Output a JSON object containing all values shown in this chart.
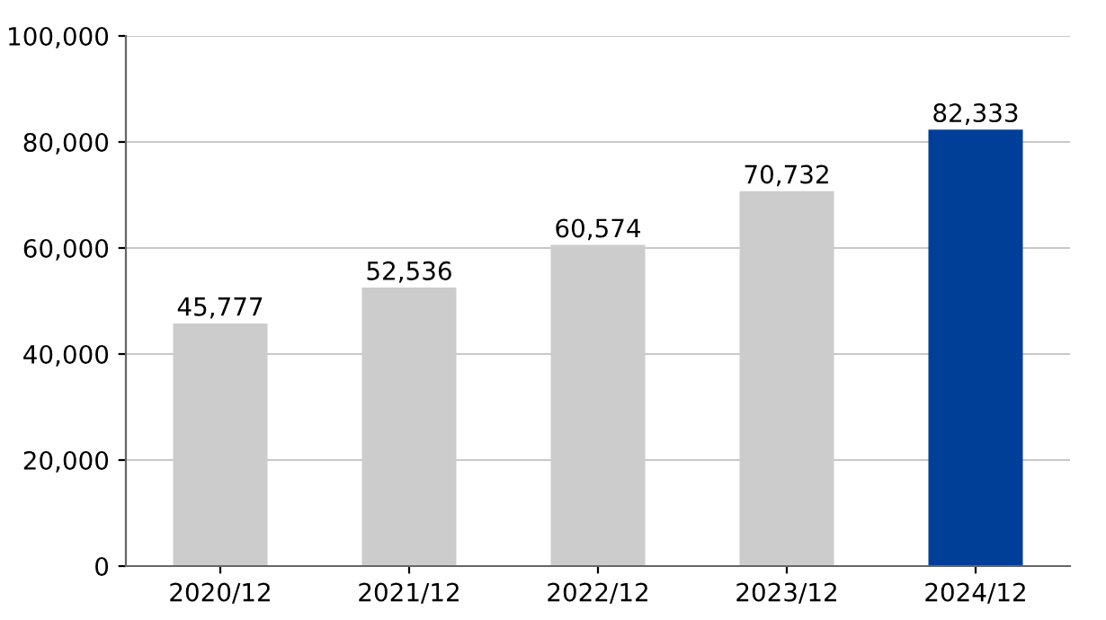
{
  "chart_data": {
    "type": "bar",
    "categories": [
      "2020/12",
      "2021/12",
      "2022/12",
      "2023/12",
      "2024/12"
    ],
    "values": [
      45777,
      52536,
      60574,
      70732,
      82333
    ],
    "colors": [
      "#cccccc",
      "#cccccc",
      "#cccccc",
      "#cccccc",
      "#003f98"
    ],
    "ylim": [
      0,
      100000
    ],
    "yticks": [
      {
        "value": 0,
        "label": "0"
      },
      {
        "value": 20000,
        "label": "20,000"
      },
      {
        "value": 40000,
        "label": "40,000"
      },
      {
        "value": 60000,
        "label": "60,000"
      },
      {
        "value": 80000,
        "label": "80,000"
      },
      {
        "value": 100000,
        "label": "100,000"
      }
    ],
    "value_labels": [
      "45,777",
      "52,536",
      "60,574",
      "70,732",
      "82,333"
    ],
    "grid": "y",
    "legend": false
  }
}
